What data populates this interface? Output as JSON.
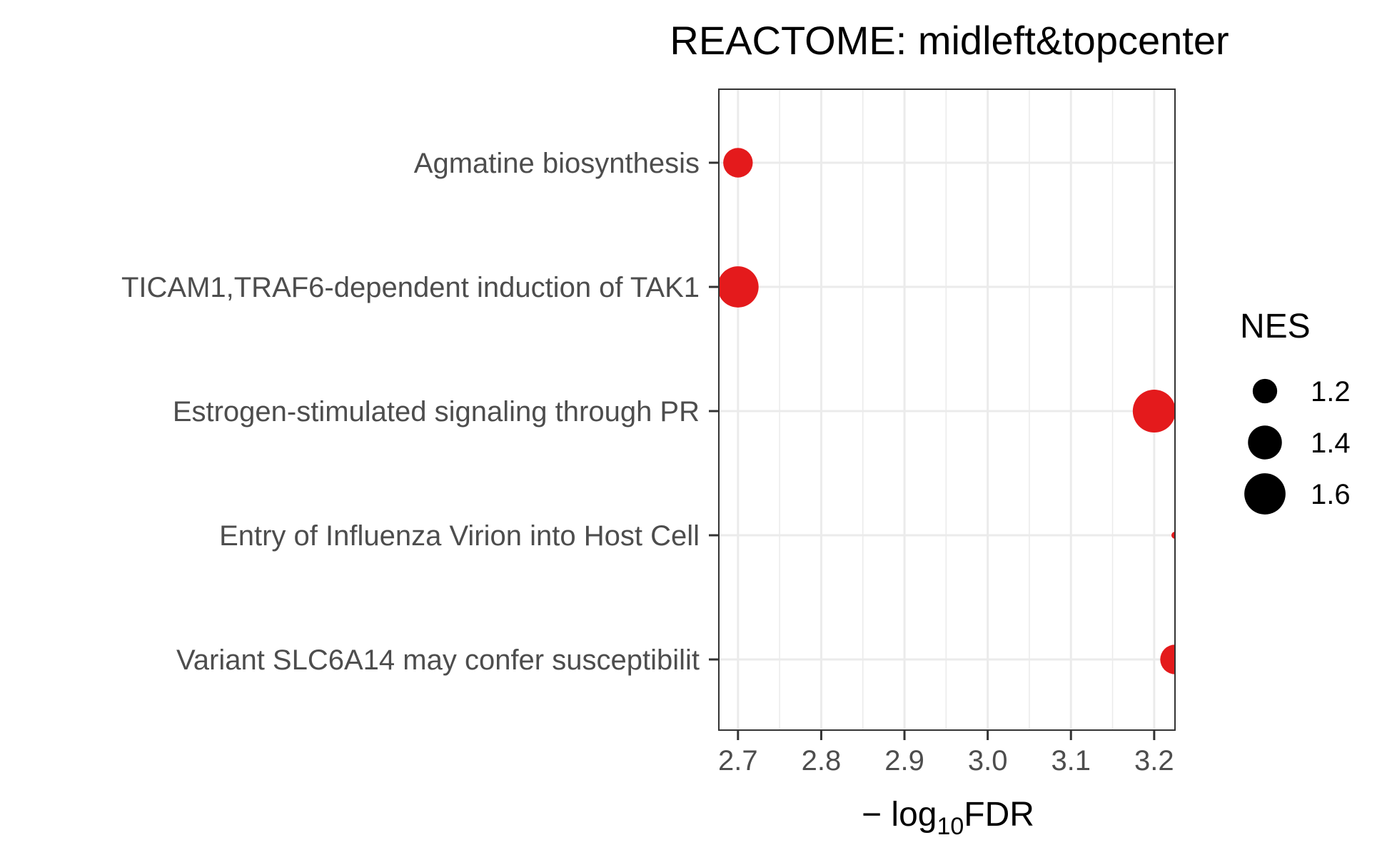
{
  "chart_data": {
    "type": "scatter",
    "title": "REACTOME: midleft&topcenter",
    "xlabel": {
      "prefix": "− log",
      "subscript": "10",
      "suffix": "FDR"
    },
    "ylabel": "",
    "xlim": [
      2.677,
      3.225
    ],
    "x_ticks": [
      2.7,
      2.8,
      2.9,
      3.0,
      3.1,
      3.2
    ],
    "x_tick_labels": [
      "2.7",
      "2.8",
      "2.9",
      "3.0",
      "3.1",
      "3.2"
    ],
    "categories": [
      "Agmatine biosynthesis",
      "TICAM1,TRAF6-dependent induction of TAK1",
      "Estrogen-stimulated signaling through PR",
      "Entry of Influenza Virion into Host Cell",
      "Variant SLC6A14 may confer susceptibilit"
    ],
    "points": [
      {
        "category": "Agmatine biosynthesis",
        "x": 2.7,
        "nes": 1.3
      },
      {
        "category": "TICAM1,TRAF6-dependent induction of TAK1",
        "x": 2.7,
        "nes": 1.6
      },
      {
        "category": "Estrogen-stimulated signaling through PR",
        "x": 3.2,
        "nes": 1.65
      },
      {
        "category": "Entry of Influenza Virion into Host Cell",
        "x": 3.225,
        "nes": 1.0
      },
      {
        "category": "Variant SLC6A14 may confer susceptibilit",
        "x": 3.225,
        "nes": 1.3
      }
    ],
    "point_color": "#E41A1C",
    "grid": true,
    "legend": {
      "title": "NES",
      "position": "right",
      "entries": [
        {
          "label": "1.2",
          "value": 1.2
        },
        {
          "label": "1.4",
          "value": 1.4
        },
        {
          "label": "1.6",
          "value": 1.6
        }
      ]
    },
    "size_range": {
      "nes_min": 1.0,
      "nes_max": 1.65
    }
  }
}
